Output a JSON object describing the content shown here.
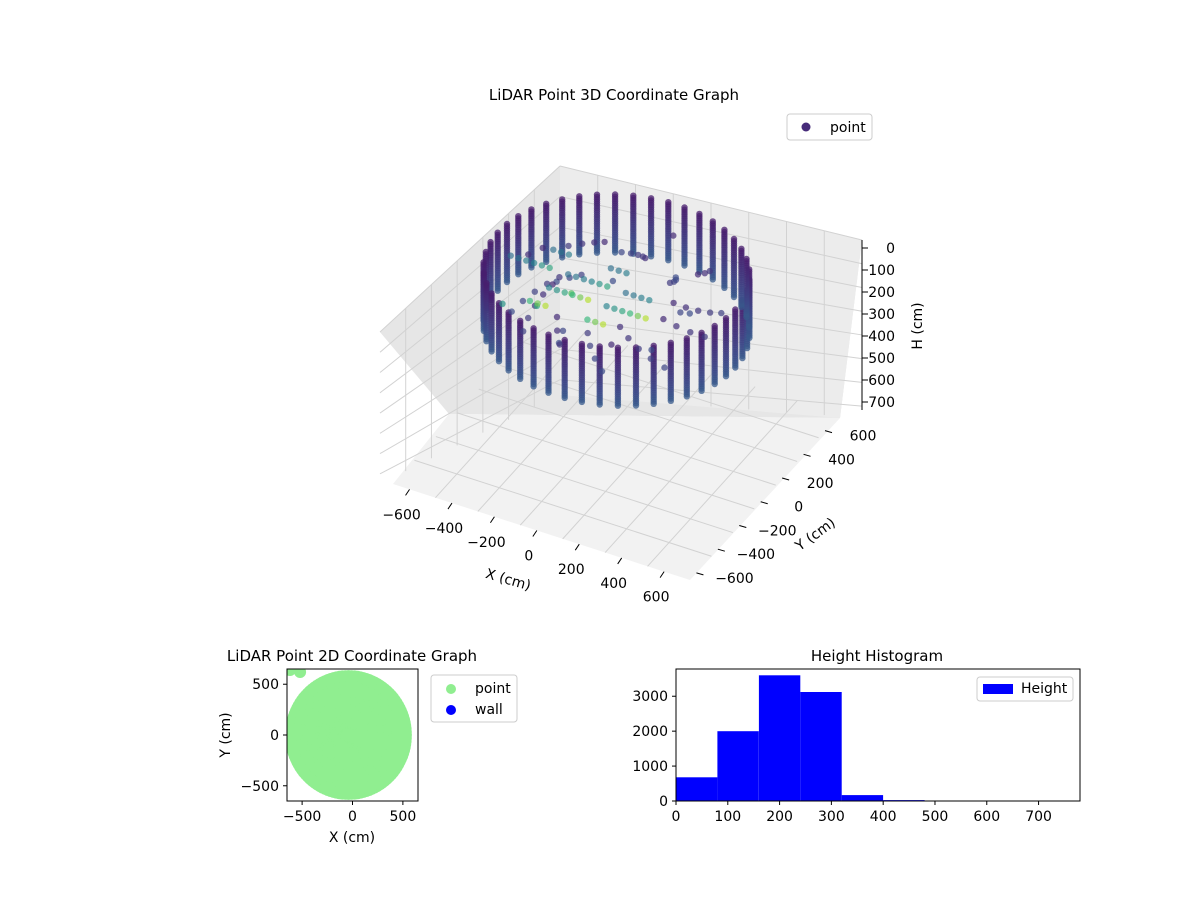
{
  "chart_data": [
    {
      "type": "scatter",
      "projection": "3d",
      "title": "LiDAR Point 3D Coordinate Graph",
      "xlabel": "X (cm)",
      "ylabel": "Y (cm)",
      "zlabel": "H (cm)",
      "x_ticks": [
        "−600",
        "−400",
        "−200",
        "0",
        "200",
        "400",
        "600"
      ],
      "y_ticks": [
        "−600",
        "−400",
        "−200",
        "0",
        "200",
        "400",
        "600"
      ],
      "z_ticks": [
        "0",
        "100",
        "200",
        "300",
        "400",
        "500",
        "600",
        "700"
      ],
      "xlim": [
        -650,
        650
      ],
      "ylim": [
        -650,
        650
      ],
      "zlim": [
        0,
        780
      ],
      "z_inverted": true,
      "grid": true,
      "legend": {
        "entries": [
          "point"
        ],
        "placement": "top-right"
      },
      "colormap": "viridis",
      "series": [
        {
          "name": "point",
          "color": "#472c7a",
          "description": "Ring-shaped room scan: points on a wall of radius ~550 cm, heights 0–320 cm, plus sparse outliers up to ~700 cm",
          "samples": [
            {
              "x": 550,
              "y": 0,
              "h": 0
            },
            {
              "x": 550,
              "y": 0,
              "h": 100
            },
            {
              "x": 550,
              "y": 0,
              "h": 200
            },
            {
              "x": 550,
              "y": 0,
              "h": 300
            },
            {
              "x": 389,
              "y": 389,
              "h": 0
            },
            {
              "x": 389,
              "y": 389,
              "h": 150
            },
            {
              "x": 389,
              "y": 389,
              "h": 300
            },
            {
              "x": 0,
              "y": 550,
              "h": 0
            },
            {
              "x": 0,
              "y": 550,
              "h": 150
            },
            {
              "x": 0,
              "y": 550,
              "h": 300
            },
            {
              "x": -389,
              "y": 389,
              "h": 50
            },
            {
              "x": -389,
              "y": 389,
              "h": 250
            },
            {
              "x": -550,
              "y": 0,
              "h": 50
            },
            {
              "x": -550,
              "y": 0,
              "h": 250
            },
            {
              "x": -389,
              "y": -389,
              "h": 0
            },
            {
              "x": -389,
              "y": -389,
              "h": 150
            },
            {
              "x": -389,
              "y": -389,
              "h": 300
            },
            {
              "x": 0,
              "y": -550,
              "h": 0
            },
            {
              "x": 0,
              "y": -550,
              "h": 150
            },
            {
              "x": 0,
              "y": -550,
              "h": 300
            },
            {
              "x": 389,
              "y": -389,
              "h": 0
            },
            {
              "x": 389,
              "y": -389,
              "h": 150
            },
            {
              "x": 389,
              "y": -389,
              "h": 300
            },
            {
              "x": -500,
              "y": 300,
              "h": 600
            },
            {
              "x": -450,
              "y": 500,
              "h": 650
            },
            {
              "x": -600,
              "y": 200,
              "h": 560
            }
          ]
        }
      ]
    },
    {
      "type": "scatter",
      "title": "LiDAR Point 2D Coordinate Graph",
      "xlabel": "X (cm)",
      "ylabel": "Y (cm)",
      "x_ticks": [
        "−500",
        "0",
        "500"
      ],
      "y_ticks": [
        "500",
        "0",
        "−500"
      ],
      "xlim": [
        -650,
        650
      ],
      "ylim": [
        -650,
        650
      ],
      "grid": false,
      "legend": {
        "entries": [
          "point",
          "wall"
        ],
        "placement": "outside-right"
      },
      "series": [
        {
          "name": "point",
          "color": "#90ee90",
          "description": "Filled disc of points, radius ~560 cm centered near origin"
        },
        {
          "name": "wall",
          "color": "#0000ff",
          "values": []
        }
      ]
    },
    {
      "type": "bar",
      "subtype": "histogram",
      "title": "Height Histogram",
      "xlabel": "",
      "ylabel": "",
      "x_ticks": [
        "0",
        "100",
        "200",
        "300",
        "400",
        "500",
        "600",
        "700"
      ],
      "y_ticks": [
        "0",
        "1000",
        "2000",
        "3000"
      ],
      "xlim": [
        0,
        780
      ],
      "ylim": [
        0,
        3780
      ],
      "legend": {
        "entries": [
          "Height"
        ],
        "placement": "top-right"
      },
      "series": [
        {
          "name": "Height",
          "color": "#0000ff",
          "bins": [
            {
              "start": 0,
              "end": 80,
              "count": 680
            },
            {
              "start": 80,
              "end": 160,
              "count": 2000
            },
            {
              "start": 160,
              "end": 240,
              "count": 3600
            },
            {
              "start": 240,
              "end": 320,
              "count": 3120
            },
            {
              "start": 320,
              "end": 400,
              "count": 170
            },
            {
              "start": 400,
              "end": 480,
              "count": 25
            },
            {
              "start": 480,
              "end": 560,
              "count": 5
            },
            {
              "start": 560,
              "end": 640,
              "count": 3
            },
            {
              "start": 640,
              "end": 720,
              "count": 2
            }
          ]
        }
      ]
    }
  ]
}
